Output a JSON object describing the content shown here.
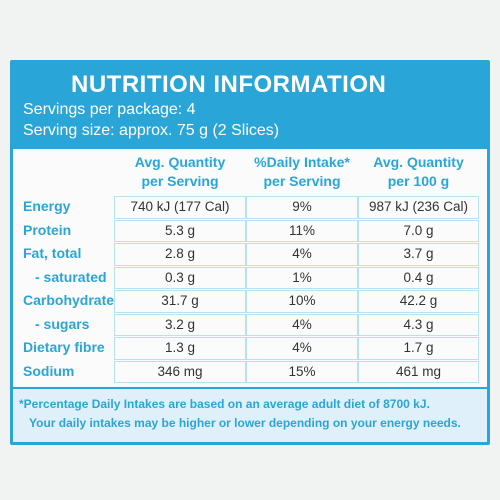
{
  "panel": {
    "title": "NUTRITION INFORMATION",
    "servings_per_package": "Servings per package: 4",
    "serving_size": "Serving size: approx. 75 g (2 Slices)"
  },
  "columns": [
    "Avg. Quantity\nper Serving",
    "%Daily Intake*\nper Serving",
    "Avg. Quantity\nper 100 g"
  ],
  "rows": [
    {
      "name": "Energy",
      "per_serving": "740 kJ (177 Cal)",
      "daily_intake": "9%",
      "per_100g": "987 kJ (236 Cal)"
    },
    {
      "name": "Protein",
      "per_serving": "5.3 g",
      "daily_intake": "11%",
      "per_100g": "7.0 g"
    },
    {
      "name": "Fat, total",
      "per_serving": "2.8 g",
      "daily_intake": "4%",
      "per_100g": "3.7 g"
    },
    {
      "name": "- saturated",
      "per_serving": "0.3 g",
      "daily_intake": "1%",
      "per_100g": "0.4 g"
    },
    {
      "name": "Carbohydrate",
      "per_serving": "31.7 g",
      "daily_intake": "10%",
      "per_100g": "42.2 g"
    },
    {
      "name": "- sugars",
      "per_serving": "3.2 g",
      "daily_intake": "4%",
      "per_100g": "4.3 g"
    },
    {
      "name": "Dietary fibre",
      "per_serving": "1.3 g",
      "daily_intake": "4%",
      "per_100g": "1.7 g"
    },
    {
      "name": "Sodium",
      "per_serving": "346 mg",
      "daily_intake": "15%",
      "per_100g": "461 mg"
    }
  ],
  "footnote": {
    "line1": "*Percentage Daily Intakes are based on an average adult diet of 8700 kJ.",
    "line2": "Your daily intakes may be higher or lower depending on your energy needs."
  },
  "colors": {
    "accent": "#2aa5d8",
    "footnote_background": "#dff0fa",
    "page_background": "#f1f2f2"
  }
}
